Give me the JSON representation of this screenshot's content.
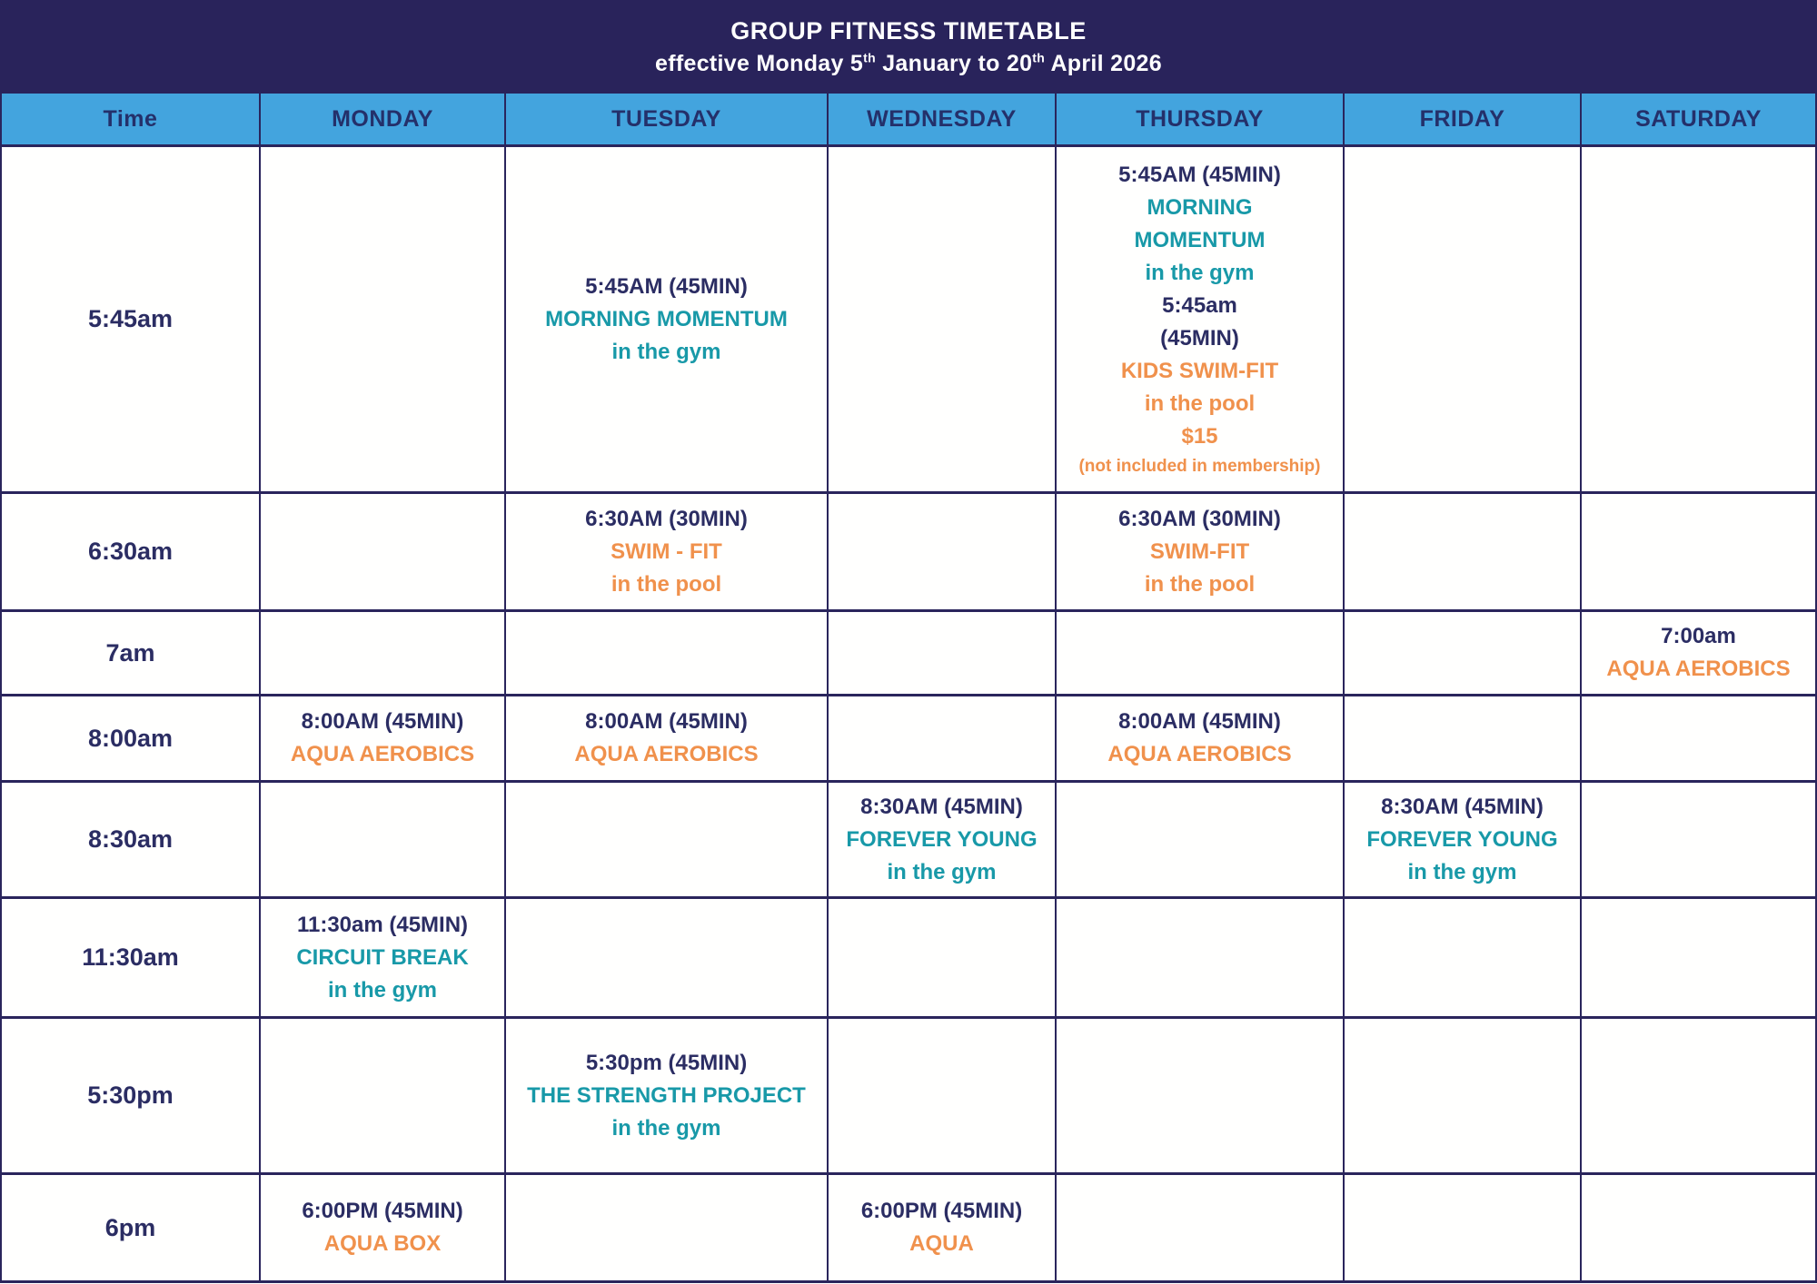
{
  "header": {
    "title": "GROUP FITNESS TIMETABLE",
    "subtitle": {
      "prefix": "effective Monday 5",
      "sup1": "th",
      "mid": " January to 20",
      "sup2": "th",
      "suffix": " April 2026"
    }
  },
  "colors": {
    "navy_band": "#29235b",
    "header_blue": "#43a4de",
    "text_navy": "#2b2d63",
    "teal": "#1899a8",
    "orange": "#f0914c",
    "border": "#2a255c"
  },
  "columns": [
    "Time",
    "MONDAY",
    "TUESDAY",
    "WEDNESDAY",
    "THURSDAY",
    "FRIDAY",
    "SATURDAY"
  ],
  "rows": [
    {
      "time": "5:45am",
      "cells": [
        [],
        [
          {
            "t": "5:45AM (45MIN)",
            "c": "navy"
          },
          {
            "t": "MORNING MOMENTUM",
            "c": "teal"
          },
          {
            "t": "in the gym",
            "c": "teal"
          }
        ],
        [],
        [
          {
            "t": "5:45AM (45MIN)",
            "c": "navy"
          },
          {
            "t": "MORNING",
            "c": "teal"
          },
          {
            "t": "MOMENTUM",
            "c": "teal"
          },
          {
            "t": "in the gym",
            "c": "teal"
          },
          {
            "t": "5:45am",
            "c": "navy"
          },
          {
            "t": "(45MIN)",
            "c": "navy"
          },
          {
            "t": "KIDS SWIM-FIT",
            "c": "orange"
          },
          {
            "t": "in the pool",
            "c": "orange"
          },
          {
            "t": "$15",
            "c": "orange"
          },
          {
            "t": "(not included in membership)",
            "c": "orange",
            "s": "small"
          }
        ],
        [],
        []
      ]
    },
    {
      "time": "6:30am",
      "cells": [
        [],
        [
          {
            "t": "6:30AM (30MIN)",
            "c": "navy"
          },
          {
            "t": "SWIM - FIT",
            "c": "orange"
          },
          {
            "t": "in the pool",
            "c": "orange"
          }
        ],
        [],
        [
          {
            "t": "6:30AM (30MIN)",
            "c": "navy"
          },
          {
            "t": "SWIM-FIT",
            "c": "orange"
          },
          {
            "t": "in the pool",
            "c": "orange"
          }
        ],
        [],
        []
      ]
    },
    {
      "time": "7am",
      "cells": [
        [],
        [],
        [],
        [],
        [],
        [
          {
            "t": "7:00am",
            "c": "navy"
          },
          {
            "t": "AQUA AEROBICS",
            "c": "orange"
          }
        ]
      ]
    },
    {
      "time": "8:00am",
      "cells": [
        [
          {
            "t": "8:00AM (45MIN)",
            "c": "navy"
          },
          {
            "t": "AQUA AEROBICS",
            "c": "orange"
          }
        ],
        [
          {
            "t": "8:00AM (45MIN)",
            "c": "navy"
          },
          {
            "t": "AQUA AEROBICS",
            "c": "orange"
          }
        ],
        [],
        [
          {
            "t": "8:00AM (45MIN)",
            "c": "navy"
          },
          {
            "t": "AQUA AEROBICS",
            "c": "orange"
          }
        ],
        [],
        []
      ]
    },
    {
      "time": "8:30am",
      "cells": [
        [],
        [],
        [
          {
            "t": "8:30AM (45MIN)",
            "c": "navy"
          },
          {
            "t": "FOREVER YOUNG",
            "c": "teal"
          },
          {
            "t": "in the gym",
            "c": "teal"
          }
        ],
        [],
        [
          {
            "t": "8:30AM (45MIN)",
            "c": "navy"
          },
          {
            "t": "FOREVER YOUNG",
            "c": "teal"
          },
          {
            "t": "in the gym",
            "c": "teal"
          }
        ],
        []
      ]
    },
    {
      "time": "11:30am",
      "cells": [
        [
          {
            "t": "11:30am (45MIN)",
            "c": "navy"
          },
          {
            "t": "CIRCUIT BREAK",
            "c": "teal"
          },
          {
            "t": "in the gym",
            "c": "teal"
          }
        ],
        [],
        [],
        [],
        [],
        []
      ]
    },
    {
      "time": "5:30pm",
      "cells": [
        [],
        [
          {
            "t": "5:30pm  (45MIN)",
            "c": "navy"
          },
          {
            "t": "THE STRENGTH PROJECT",
            "c": "teal"
          },
          {
            "t": "in the gym",
            "c": "teal"
          }
        ],
        [],
        [],
        [],
        []
      ]
    },
    {
      "time": "6pm",
      "cells": [
        [
          {
            "t": "6:00PM (45MIN)",
            "c": "navy"
          },
          {
            "t": "AQUA BOX",
            "c": "orange"
          }
        ],
        [],
        [
          {
            "t": "6:00PM (45MIN)",
            "c": "navy"
          },
          {
            "t": "AQUA",
            "c": "orange"
          }
        ],
        [],
        [],
        []
      ]
    }
  ]
}
